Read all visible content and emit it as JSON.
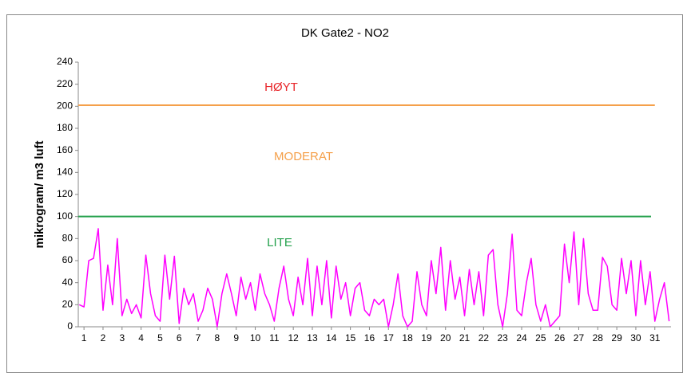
{
  "chart_data": {
    "type": "line",
    "title": "DK Gate2 - NO2",
    "y_label": "mikrogram/ m3 luft",
    "xlim": [
      0.7,
      31.85
    ],
    "xticks": [
      1,
      2,
      3,
      4,
      5,
      6,
      7,
      8,
      9,
      10,
      11,
      12,
      13,
      14,
      15,
      16,
      17,
      18,
      19,
      20,
      21,
      22,
      23,
      24,
      25,
      26,
      27,
      28,
      29,
      30,
      31
    ],
    "ylim": [
      0,
      240
    ],
    "yticks": [
      0,
      20,
      40,
      60,
      80,
      100,
      120,
      140,
      160,
      180,
      200,
      220,
      240
    ],
    "series": [
      {
        "color": "#ff00ff",
        "x": [
          0.75,
          1,
          1.25,
          1.5,
          1.75,
          2,
          2.25,
          2.5,
          2.75,
          3,
          3.25,
          3.5,
          3.75,
          4,
          4.25,
          4.5,
          4.75,
          5,
          5.25,
          5.5,
          5.75,
          6,
          6.25,
          6.5,
          6.75,
          7,
          7.25,
          7.5,
          7.75,
          8,
          8.25,
          8.5,
          8.75,
          9,
          9.25,
          9.5,
          9.75,
          10,
          10.25,
          10.5,
          10.75,
          11,
          11.25,
          11.5,
          11.75,
          12,
          12.25,
          12.5,
          12.75,
          13,
          13.25,
          13.5,
          13.75,
          14,
          14.25,
          14.5,
          14.75,
          15,
          15.25,
          15.5,
          15.75,
          16,
          16.25,
          16.5,
          16.75,
          17,
          17.25,
          17.5,
          17.75,
          18,
          18.25,
          18.5,
          18.75,
          19,
          19.25,
          19.5,
          19.75,
          20,
          20.25,
          20.5,
          20.75,
          21,
          21.25,
          21.5,
          21.75,
          22,
          22.25,
          22.5,
          22.75,
          23,
          23.25,
          23.5,
          23.75,
          24,
          24.25,
          24.5,
          24.75,
          25,
          25.25,
          25.5,
          25.75,
          26,
          26.25,
          26.5,
          26.75,
          27,
          27.25,
          27.5,
          27.75,
          28,
          28.25,
          28.5,
          28.75,
          29,
          29.25,
          29.5,
          29.75,
          30,
          30.25,
          30.5,
          30.75,
          31,
          31.25,
          31.5,
          31.75
        ],
        "values": [
          20,
          18,
          60,
          62,
          89,
          15,
          56,
          20,
          80,
          10,
          25,
          12,
          20,
          8,
          65,
          30,
          10,
          5,
          65,
          25,
          64,
          3,
          35,
          20,
          30,
          5,
          15,
          35,
          25,
          0,
          30,
          48,
          30,
          10,
          45,
          25,
          40,
          15,
          48,
          30,
          20,
          5,
          35,
          55,
          25,
          10,
          45,
          20,
          62,
          10,
          55,
          20,
          60,
          8,
          55,
          25,
          40,
          10,
          35,
          40,
          15,
          10,
          25,
          20,
          25,
          0,
          20,
          48,
          10,
          0,
          5,
          50,
          20,
          10,
          60,
          30,
          72,
          15,
          60,
          25,
          45,
          10,
          52,
          20,
          50,
          10,
          65,
          70,
          20,
          0,
          30,
          84,
          15,
          10,
          40,
          62,
          20,
          5,
          20,
          0,
          5,
          10,
          75,
          40,
          86,
          20,
          80,
          30,
          15,
          15,
          63,
          55,
          20,
          15,
          62,
          30,
          60,
          10,
          60,
          20,
          50,
          5,
          25,
          40,
          5
        ]
      }
    ],
    "threshold_lines": [
      {
        "value": 201,
        "color": "#f5a04a",
        "x": [
          0.7,
          31
        ]
      },
      {
        "value": 100,
        "color": "#22a04b",
        "x": [
          0.7,
          30.8
        ]
      }
    ],
    "annotations": [
      {
        "text": "HØYT",
        "color": "#e8262a"
      },
      {
        "text": "MODERAT",
        "color": "#f5a04a"
      },
      {
        "text": "LITE",
        "color": "#22a04b"
      }
    ]
  }
}
